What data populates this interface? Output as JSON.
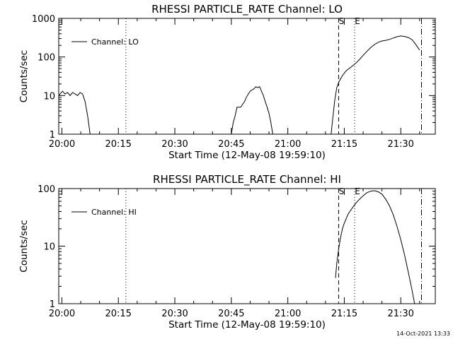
{
  "footer": {
    "timestamp": "14-Oct-2021 13:33"
  },
  "chart_data": [
    {
      "type": "line",
      "title": "RHESSI PARTICLE_RATE Channel: LO",
      "xlabel": "Start Time (12-May-08 19:59:10)",
      "ylabel": "Counts/sec",
      "yscale": "log",
      "ylim": [
        1,
        1000
      ],
      "yticks": [
        "1",
        "10",
        "100",
        "1000"
      ],
      "xlim": [
        "19:59:10",
        "21:39:10"
      ],
      "xticks": [
        "20:00",
        "20:15",
        "20:30",
        "20:45",
        "21:00",
        "21:15",
        "21:30"
      ],
      "legend": {
        "label": "Channel: LO",
        "position": "top-left"
      },
      "markers": [
        {
          "label": "",
          "time": "20:17:00",
          "style": "dotted"
        },
        {
          "label": "S",
          "time": "21:13:30",
          "style": "dashed"
        },
        {
          "label": "E",
          "time": "21:17:45",
          "style": "dotted"
        },
        {
          "label": "",
          "time": "21:35:30",
          "style": "dashdot"
        }
      ],
      "series": [
        {
          "name": "Channel: LO",
          "segments": [
            [
              [
                "19:59:10",
                10
              ],
              [
                "20:00:10",
                13
              ],
              [
                "20:00:50",
                11
              ],
              [
                "20:01:30",
                12
              ],
              [
                "20:02:10",
                10
              ],
              [
                "20:02:50",
                12
              ],
              [
                "20:03:30",
                11
              ],
              [
                "20:04:10",
                10
              ],
              [
                "20:04:50",
                12
              ],
              [
                "20:05:30",
                11
              ],
              [
                "20:06:10",
                7
              ],
              [
                "20:06:50",
                3
              ],
              [
                "20:07:30",
                1
              ]
            ],
            [
              [
                "20:45:00",
                1
              ],
              [
                "20:45:30",
                2
              ],
              [
                "20:46:00",
                3
              ],
              [
                "20:46:30",
                5
              ],
              [
                "20:47:30",
                5
              ],
              [
                "20:48:00",
                6
              ],
              [
                "20:48:30",
                7
              ],
              [
                "20:49:00",
                9
              ],
              [
                "20:49:30",
                11
              ],
              [
                "20:50:00",
                13
              ],
              [
                "20:50:30",
                14
              ],
              [
                "20:51:00",
                15
              ],
              [
                "20:51:30",
                17
              ],
              [
                "20:52:00",
                16
              ],
              [
                "20:52:30",
                17
              ],
              [
                "20:53:00",
                13
              ],
              [
                "20:53:30",
                10
              ],
              [
                "20:54:00",
                7
              ],
              [
                "20:54:30",
                5
              ],
              [
                "20:55:00",
                3.5
              ],
              [
                "20:55:30",
                2
              ],
              [
                "20:56:00",
                1
              ]
            ],
            [
              [
                "21:11:30",
                1
              ],
              [
                "21:12:00",
                3
              ],
              [
                "21:12:30",
                8
              ],
              [
                "21:13:00",
                16
              ],
              [
                "21:13:30",
                22
              ],
              [
                "21:14:00",
                27
              ],
              [
                "21:14:30",
                33
              ],
              [
                "21:15:00",
                38
              ],
              [
                "21:15:30",
                44
              ],
              [
                "21:16:00",
                48
              ],
              [
                "21:16:30",
                52
              ],
              [
                "21:17:00",
                57
              ],
              [
                "21:18:00",
                68
              ],
              [
                "21:19:00",
                85
              ],
              [
                "21:20:00",
                110
              ],
              [
                "21:21:00",
                140
              ],
              [
                "21:22:00",
                175
              ],
              [
                "21:23:00",
                210
              ],
              [
                "21:24:00",
                240
              ],
              [
                "21:25:00",
                260
              ],
              [
                "21:26:00",
                270
              ],
              [
                "21:27:00",
                285
              ],
              [
                "21:28:00",
                310
              ],
              [
                "21:29:00",
                335
              ],
              [
                "21:30:00",
                350
              ],
              [
                "21:31:00",
                340
              ],
              [
                "21:32:00",
                320
              ],
              [
                "21:33:00",
                280
              ],
              [
                "21:34:00",
                210
              ],
              [
                "21:35:00",
                150
              ]
            ]
          ]
        }
      ]
    },
    {
      "type": "line",
      "title": "RHESSI PARTICLE_RATE Channel: HI",
      "xlabel": "Start Time (12-May-08 19:59:10)",
      "ylabel": "Counts/sec",
      "yscale": "log",
      "ylim": [
        1,
        100
      ],
      "yticks": [
        "1",
        "10",
        "100"
      ],
      "xlim": [
        "19:59:10",
        "21:39:10"
      ],
      "xticks": [
        "20:00",
        "20:15",
        "20:30",
        "20:45",
        "21:00",
        "21:15",
        "21:30"
      ],
      "legend": {
        "label": "Channel: HI",
        "position": "top-left"
      },
      "markers": [
        {
          "label": "",
          "time": "20:17:00",
          "style": "dotted"
        },
        {
          "label": "S",
          "time": "21:13:30",
          "style": "dashed"
        },
        {
          "label": "E",
          "time": "21:17:45",
          "style": "dotted"
        },
        {
          "label": "",
          "time": "21:35:30",
          "style": "dashdot"
        }
      ],
      "series": [
        {
          "name": "Channel: HI",
          "segments": [
            [
              [
                "21:12:40",
                2.8
              ],
              [
                "21:13:00",
                5
              ],
              [
                "21:13:30",
                9
              ],
              [
                "21:14:00",
                14
              ],
              [
                "21:14:30",
                20
              ],
              [
                "21:15:00",
                25
              ],
              [
                "21:15:30",
                30
              ],
              [
                "21:16:00",
                36
              ],
              [
                "21:16:30",
                40
              ],
              [
                "21:17:00",
                45
              ],
              [
                "21:18:00",
                55
              ],
              [
                "21:19:00",
                65
              ],
              [
                "21:20:00",
                75
              ],
              [
                "21:21:00",
                85
              ],
              [
                "21:22:00",
                90
              ],
              [
                "21:23:00",
                92
              ],
              [
                "21:24:00",
                88
              ],
              [
                "21:25:00",
                80
              ],
              [
                "21:26:00",
                65
              ],
              [
                "21:27:00",
                50
              ],
              [
                "21:28:00",
                35
              ],
              [
                "21:29:00",
                22
              ],
              [
                "21:30:00",
                13
              ],
              [
                "21:31:00",
                7
              ],
              [
                "21:32:00",
                3.5
              ],
              [
                "21:33:00",
                1.7
              ],
              [
                "21:33:40",
                1
              ]
            ]
          ]
        }
      ]
    }
  ]
}
